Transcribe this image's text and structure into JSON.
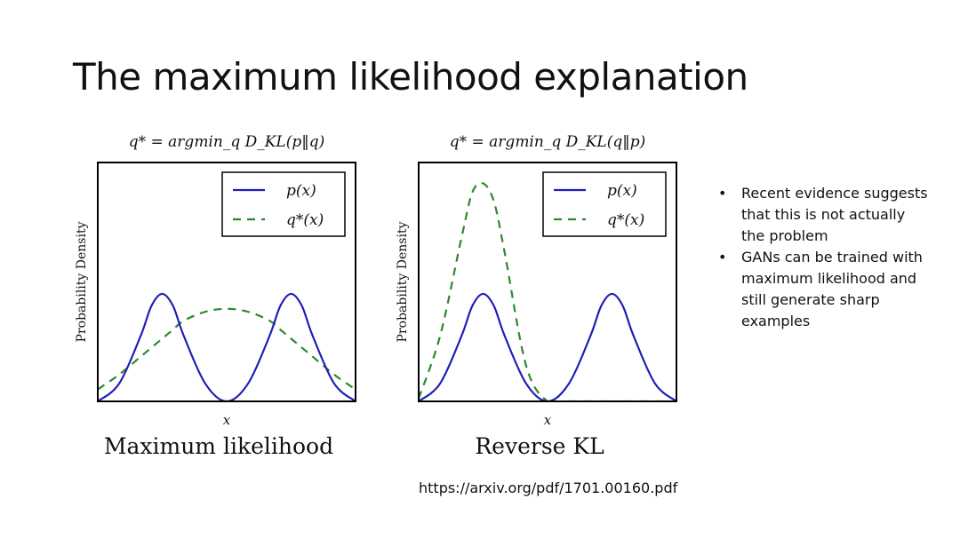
{
  "slide": {
    "title": "The maximum likelihood explanation",
    "bullets": [
      "Recent evidence suggests that this is not actually the problem",
      "GANs can be trained with maximum likelihood and still generate sharp examples"
    ],
    "link": "https://arxiv.org/pdf/1701.00160.pdf"
  },
  "colors": {
    "p_line": "#1f1fb4",
    "q_line": "#2a8a2a",
    "axis": "#000000"
  },
  "chart_data": [
    {
      "type": "line",
      "title": "q* = argmin_q D_KL(p‖q)",
      "xlabel": "x",
      "ylabel": "Probability Density",
      "caption": "Maximum likelihood",
      "legend_position": "top-right",
      "grid": false,
      "xlim": [
        -3,
        3
      ],
      "ylim": [
        0,
        0.8
      ],
      "x": [
        -3,
        -2.5,
        -2,
        -1.75,
        -1.5,
        -1.25,
        -1,
        -0.5,
        0,
        0.5,
        1,
        1.25,
        1.5,
        1.75,
        2,
        2.5,
        3
      ],
      "series": [
        {
          "name": "p(x)",
          "style": "solid",
          "values": [
            0.0,
            0.06,
            0.22,
            0.32,
            0.36,
            0.32,
            0.22,
            0.06,
            0.0,
            0.06,
            0.22,
            0.32,
            0.36,
            0.32,
            0.22,
            0.06,
            0.0
          ]
        },
        {
          "name": "q*(x)",
          "style": "dashed",
          "values": [
            0.04,
            0.09,
            0.15,
            0.18,
            0.21,
            0.24,
            0.27,
            0.3,
            0.31,
            0.3,
            0.27,
            0.24,
            0.21,
            0.18,
            0.15,
            0.09,
            0.04
          ]
        }
      ]
    },
    {
      "type": "line",
      "title": "q* = argmin_q D_KL(q‖p)",
      "xlabel": "x",
      "ylabel": "Probability Density",
      "caption": "Reverse KL",
      "legend_position": "top-right",
      "grid": false,
      "xlim": [
        -3,
        3
      ],
      "ylim": [
        0,
        0.8
      ],
      "x": [
        -3,
        -2.5,
        -2,
        -1.75,
        -1.5,
        -1.25,
        -1,
        -0.5,
        0,
        0.5,
        1,
        1.25,
        1.5,
        1.75,
        2,
        2.5,
        3
      ],
      "series": [
        {
          "name": "p(x)",
          "style": "solid",
          "values": [
            0.0,
            0.06,
            0.22,
            0.32,
            0.36,
            0.32,
            0.22,
            0.06,
            0.0,
            0.06,
            0.22,
            0.32,
            0.36,
            0.32,
            0.22,
            0.06,
            0.0
          ]
        },
        {
          "name": "q*(x)",
          "style": "dashed",
          "values": [
            0.01,
            0.22,
            0.55,
            0.7,
            0.73,
            0.67,
            0.5,
            0.12,
            0.0,
            0.0,
            0.0,
            0.0,
            0.0,
            0.0,
            0.0,
            0.0,
            0.0
          ]
        }
      ]
    }
  ]
}
